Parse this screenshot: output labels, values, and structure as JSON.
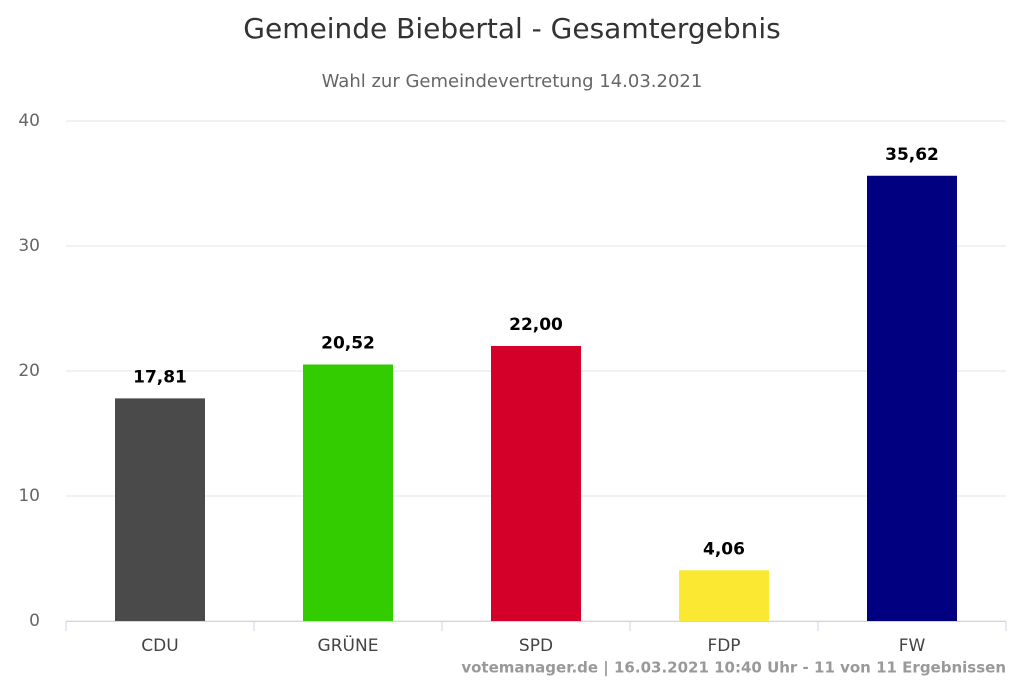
{
  "chart_data": {
    "type": "bar",
    "title": "Gemeinde Biebertal - Gesamtergebnis",
    "subtitle": "Wahl zur Gemeindevertretung 14.03.2021",
    "categories": [
      "CDU",
      "GRÜNE",
      "SPD",
      "FDP",
      "FW"
    ],
    "values": [
      17.81,
      20.52,
      22.0,
      4.06,
      35.62
    ],
    "value_labels": [
      "17,81",
      "20,52",
      "22,00",
      "4,06",
      "35,62"
    ],
    "colors": [
      "#4a4a4a",
      "#33cc00",
      "#d4002a",
      "#fbe833",
      "#000080"
    ],
    "ylim": [
      0,
      40
    ],
    "yticks": [
      0,
      10,
      20,
      30,
      40
    ],
    "grid": true,
    "credits": "votemanager.de | 16.03.2021 10:40 Uhr - 11 von 11 Ergebnissen"
  }
}
